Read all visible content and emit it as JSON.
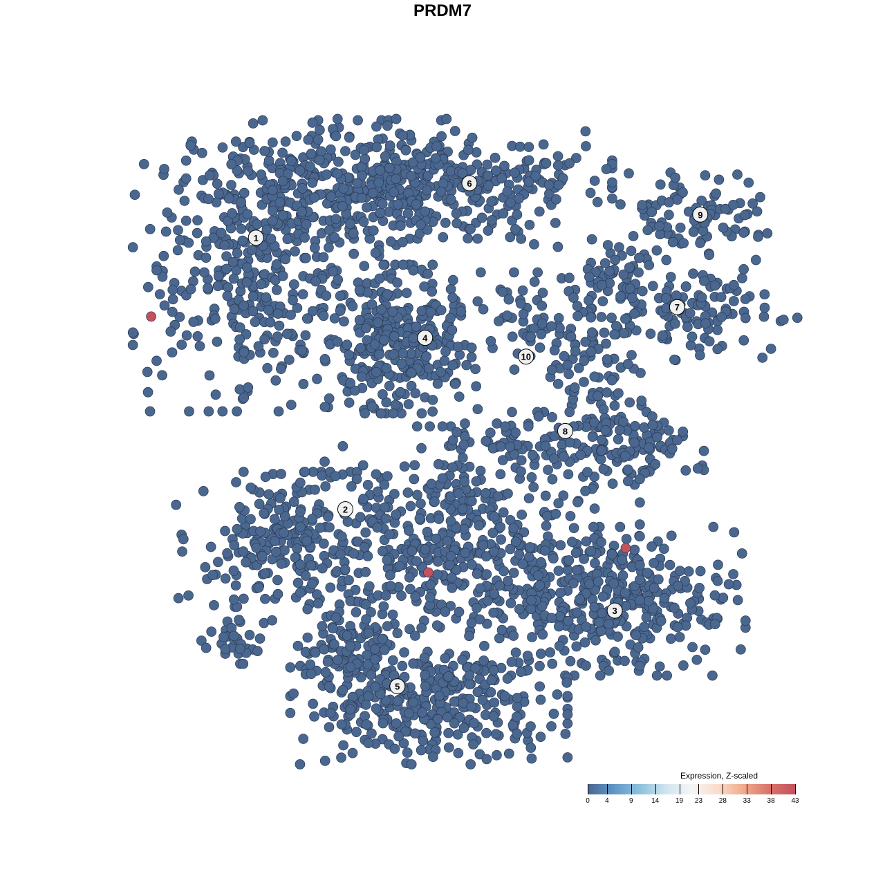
{
  "chart_data": {
    "type": "scatter",
    "title": "PRDM7",
    "xlabel": "",
    "ylabel": "",
    "grid": false,
    "axes_visible": false,
    "point_color_default": "#4a6790",
    "point_color_high": "#c4515e",
    "clusters": [
      {
        "label": "1",
        "label_pos": [
          -31.7,
          32.4
        ],
        "components": [
          {
            "center": [
              -31.7,
              26.2
            ],
            "spread": [
              8.7,
              9.8
            ],
            "n": 350
          },
          {
            "center": [
              -21.0,
              41.7
            ],
            "spread": [
              9.8,
              4.3
            ],
            "n": 250
          }
        ]
      },
      {
        "label": "6",
        "label_pos": [
          1.5,
          41.1
        ],
        "components": [
          {
            "center": [
              -2.7,
              40.6
            ],
            "spread": [
              12,
              4.9
            ],
            "n": 300
          }
        ]
      },
      {
        "label": "9",
        "label_pos": [
          37.4,
          36.1
        ],
        "components": [
          {
            "center": [
              36.0,
              36.1
            ],
            "spread": [
              6,
              3.3
            ],
            "n": 90
          }
        ]
      },
      {
        "label": "7",
        "label_pos": [
          33.8,
          21.3
        ],
        "components": [
          {
            "center": [
              37.1,
              20.1
            ],
            "spread": [
              7.6,
              3.3
            ],
            "n": 120
          },
          {
            "center": [
              24.2,
              26.2
            ],
            "spread": [
              3.8,
              2.7
            ],
            "n": 50
          }
        ]
      },
      {
        "label": "4",
        "label_pos": [
          -5.4,
          16.4
        ],
        "components": [
          {
            "center": [
              -9.1,
              16.2
            ],
            "spread": [
              5.4,
              5.4
            ],
            "n": 300
          }
        ]
      },
      {
        "label": "10",
        "label_pos": [
          10.3,
          13.4
        ],
        "components": [
          {
            "center": [
              11.3,
              18.5
            ],
            "spread": [
              4.3,
              3.8
            ],
            "n": 70
          }
        ]
      },
      {
        "label": "8",
        "label_pos": [
          16.4,
          1.5
        ],
        "components": [
          {
            "center": [
              21.0,
              8.5
            ],
            "spread": [
              3.3,
              6.5
            ],
            "n": 80
          },
          {
            "center": [
              28.5,
              -1.4
            ],
            "spread": [
              4.3,
              2.7
            ],
            "n": 80
          },
          {
            "center": [
              10.2,
              -0.3
            ],
            "spread": [
              5.4,
              2.2
            ],
            "n": 60
          }
        ]
      },
      {
        "label": "2",
        "label_pos": [
          -17.8,
          -11.0
        ],
        "components": [
          {
            "center": [
              -27.4,
              -15.8
            ],
            "spread": [
              7.6,
              4.9
            ],
            "n": 200
          },
          {
            "center": [
              -34.9,
              -31.3
            ],
            "spread": [
              3,
              2
            ],
            "n": 30
          }
        ]
      },
      {
        "label": "3",
        "label_pos": [
          24.1,
          -27.2
        ],
        "components": [
          {
            "center": [
              25.3,
              -25.7
            ],
            "spread": [
              8.7,
              5.4
            ],
            "n": 300
          },
          {
            "center": [
              1.6,
              -16.9
            ],
            "spread": [
              12,
              8.7
            ],
            "n": 500
          }
        ]
      },
      {
        "label": "5",
        "label_pos": [
          -9.7,
          -39.3
        ],
        "components": [
          {
            "center": [
              -4.8,
              -42.3
            ],
            "spread": [
              9.8,
              4.3
            ],
            "n": 300
          },
          {
            "center": [
              -15.6,
              -33.5
            ],
            "spread": [
              3.8,
              5.4
            ],
            "n": 120
          }
        ]
      }
    ],
    "high_expression_points": [
      [
        -48.0,
        19.8,
        43
      ],
      [
        -4.9,
        -21.1,
        43
      ],
      [
        25.8,
        -17.2,
        43
      ]
    ],
    "legend": {
      "title": "Expression, Z-scaled",
      "placement": "bottom-right",
      "ticks": [
        "0",
        "4",
        "9",
        "14",
        "19",
        "23",
        "28",
        "33",
        "38",
        "43"
      ],
      "range": [
        0,
        43
      ]
    }
  }
}
